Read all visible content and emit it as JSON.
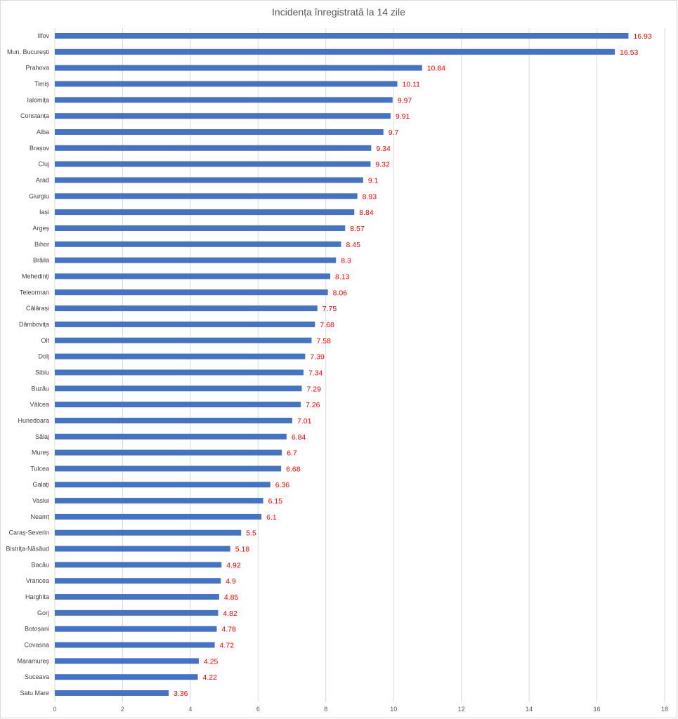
{
  "chart_data": {
    "type": "bar",
    "orientation": "horizontal",
    "title": "Incidența  înregistrată la 14 zile",
    "xlabel": "",
    "ylabel": "",
    "xlim": [
      0,
      18
    ],
    "x_ticks": [
      0,
      2,
      4,
      6,
      8,
      10,
      12,
      14,
      16,
      18
    ],
    "grid": true,
    "legend": "none",
    "bar_color": "#4472C4",
    "label_color": "#FF0000",
    "categories": [
      "Ilfov",
      "Mun. București",
      "Prahova",
      "Timiș",
      "Ialomița",
      "Constanța",
      "Alba",
      "Brașov",
      "Cluj",
      "Arad",
      "Giurgiu",
      "Iași",
      "Argeș",
      "Bihor",
      "Brăila",
      "Mehedinți",
      "Teleorman",
      "Călărași",
      "Dâmbovița",
      "Olt",
      "Dolj",
      "Sibiu",
      "Buzău",
      "Vâlcea",
      "Hunedoara",
      "Sălaj",
      "Mureș",
      "Tulcea",
      "Galați",
      "Vaslui",
      "Neamț",
      "Caraș-Severin",
      "Bistrița-Năsăud",
      "Bacău",
      "Vrancea",
      "Harghita",
      "Gorj",
      "Botoșani",
      "Covasna",
      "Maramureș",
      "Suceava",
      "Satu Mare"
    ],
    "values": [
      16.93,
      16.53,
      10.84,
      10.11,
      9.97,
      9.91,
      9.7,
      9.34,
      9.32,
      9.1,
      8.93,
      8.84,
      8.57,
      8.45,
      8.3,
      8.13,
      8.06,
      7.75,
      7.68,
      7.58,
      7.39,
      7.34,
      7.29,
      7.26,
      7.01,
      6.84,
      6.7,
      6.68,
      6.36,
      6.15,
      6.1,
      5.5,
      5.18,
      4.92,
      4.9,
      4.85,
      4.82,
      4.78,
      4.72,
      4.25,
      4.22,
      3.36
    ]
  }
}
